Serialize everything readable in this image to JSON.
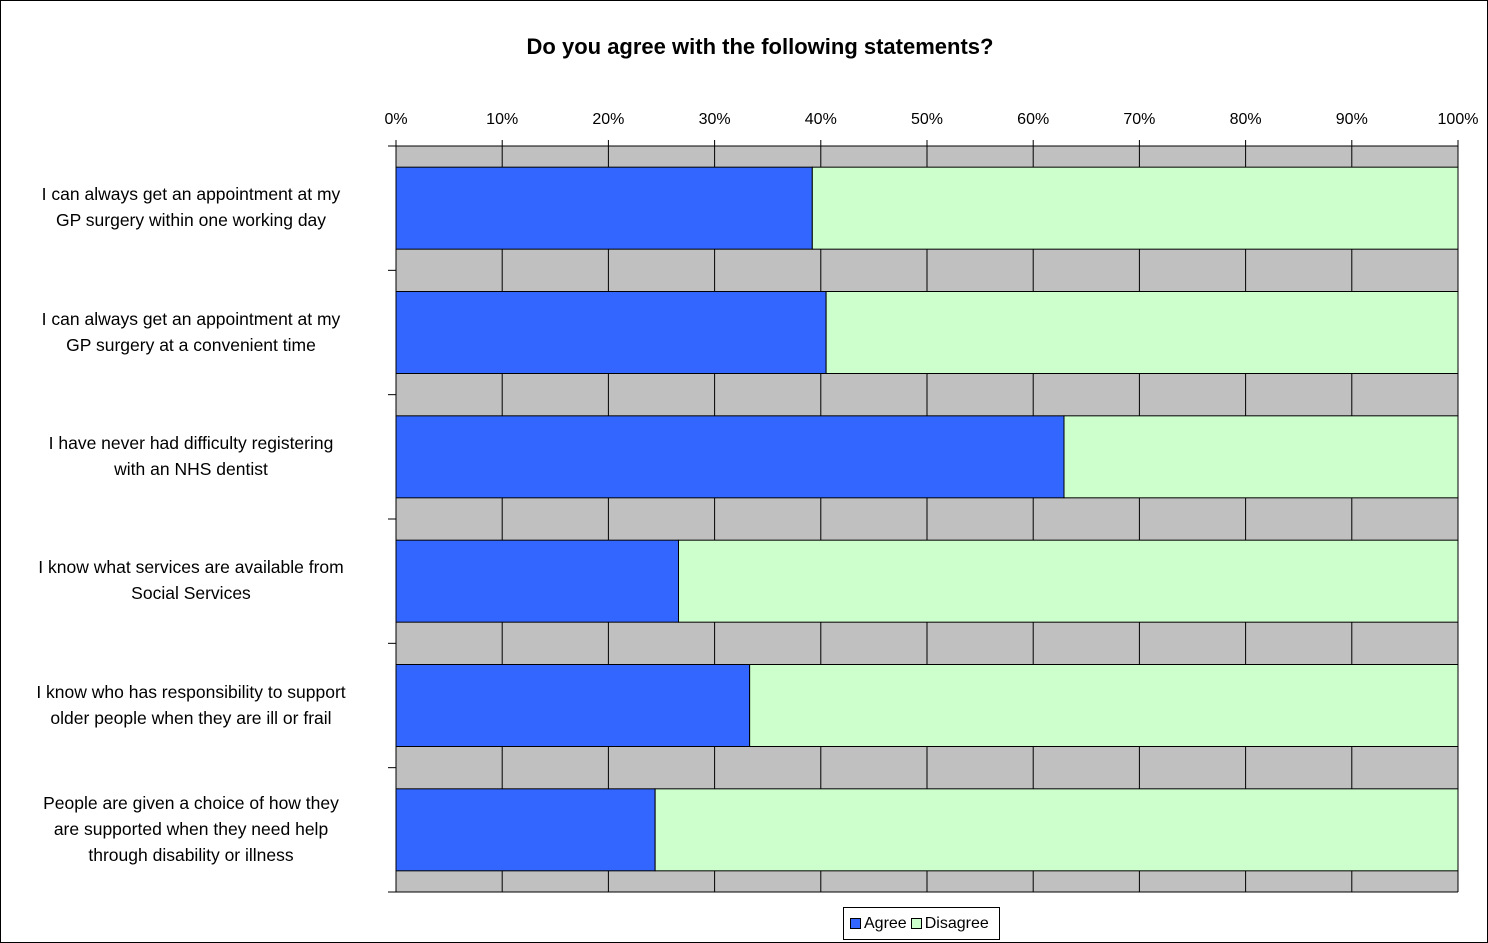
{
  "chart_data": {
    "type": "bar",
    "orientation": "horizontal",
    "stacked": "percent",
    "title": "Do you agree with the following statements?",
    "categories": [
      "I can always get an appointment at my GP surgery within one working day",
      "I can always get an appointment at my GP surgery at a convenient time",
      "I have never had difficulty registering with an NHS dentist",
      "I know what services are available from Social Services",
      "I know who has responsibility to support older people when they are ill or frail",
      "People are given a choice of how they are supported when they need help through disability or illness"
    ],
    "category_lines": [
      [
        "I can always get an appointment at my",
        "GP surgery within one working day"
      ],
      [
        "I can always get an appointment at my",
        "GP surgery at a convenient time"
      ],
      [
        "I have never had difficulty registering",
        "with an NHS dentist"
      ],
      [
        "I know what services are available from",
        "Social Services"
      ],
      [
        "I know who has responsibility to support",
        "older people when they are ill or frail"
      ],
      [
        "People are given a choice of how they",
        "are supported when they need help",
        "through disability or illness"
      ]
    ],
    "series": [
      {
        "name": "Agree",
        "color": "#3366ff",
        "values": [
          39.2,
          40.5,
          62.9,
          26.6,
          33.3,
          24.4
        ]
      },
      {
        "name": "Disagree",
        "color": "#ccffcc",
        "values": [
          60.8,
          59.5,
          37.1,
          73.4,
          66.7,
          75.6
        ]
      }
    ],
    "xlim": [
      0,
      100
    ],
    "x_ticks": [
      "0%",
      "10%",
      "20%",
      "30%",
      "40%",
      "50%",
      "60%",
      "70%",
      "80%",
      "90%",
      "100%"
    ],
    "x_axis_position": "top",
    "grid": true,
    "plot_background": "#c0c0c0",
    "legend_position": "bottom"
  }
}
